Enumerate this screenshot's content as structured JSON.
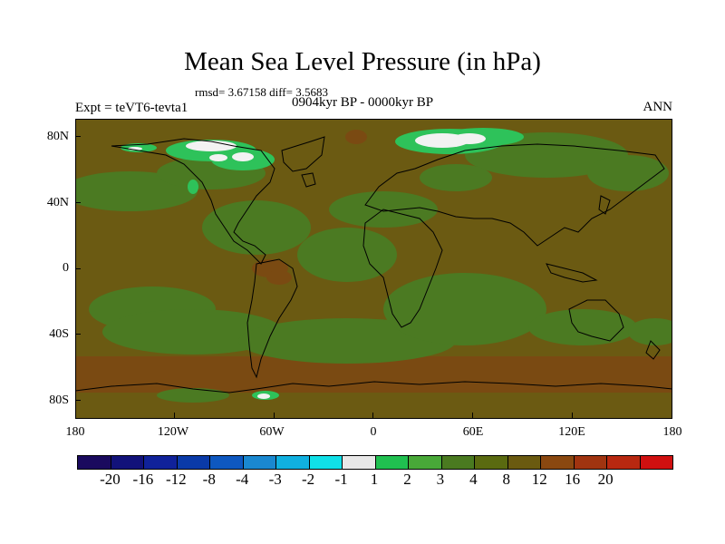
{
  "title": "Mean Sea Level Pressure (in hPa)",
  "subtitle_stats": "rmsd= 3.67158 diff= 3.5683",
  "subtitle_period": "0904kyr BP - 0000kyr BP",
  "experiment": "Expt = teVT6-tevta1",
  "season": "ANN",
  "axes": {
    "lat_labels": [
      "80N",
      "40N",
      "0",
      "40S",
      "80S"
    ],
    "lon_labels": [
      "180",
      "120W",
      "60W",
      "0",
      "60E",
      "120E",
      "180"
    ]
  },
  "colorbar": {
    "colors": [
      "#1a0a5e",
      "#12127a",
      "#10229a",
      "#0a3aa8",
      "#0e58c0",
      "#1a88d0",
      "#10b0e0",
      "#10e0e8",
      "#e8e8e8",
      "#20c050",
      "#48a838",
      "#4a7a20",
      "#5a6a10",
      "#6a5a10",
      "#8a4810",
      "#a03410",
      "#b82810",
      "#d01010"
    ],
    "labels": [
      "-20",
      "-16",
      "-12",
      "-8",
      "-4",
      "-3",
      "-2",
      "-1",
      "1",
      "2",
      "3",
      "4",
      "8",
      "12",
      "16",
      "20"
    ]
  },
  "field_colors": {
    "background": "#6b5a12",
    "low_green": "#4b7a22",
    "band_brown": "#7a4a12",
    "bright_green": "#2ec25a",
    "white": "#f2f2f2",
    "coast": "#000000"
  }
}
